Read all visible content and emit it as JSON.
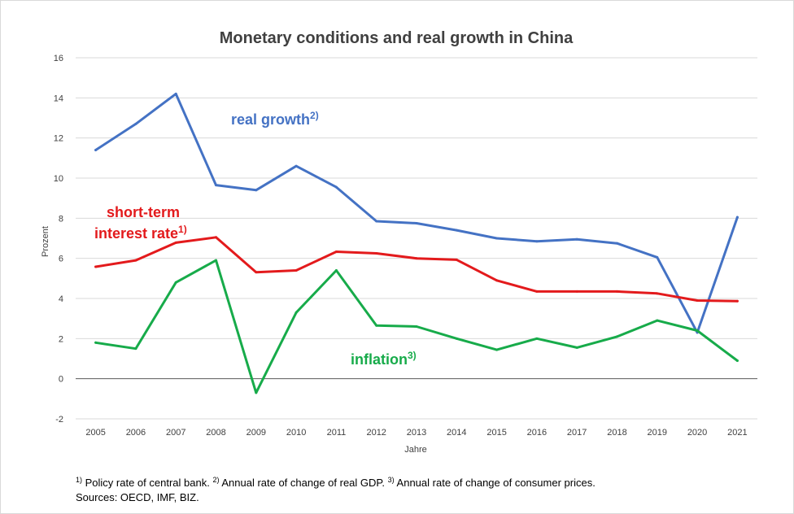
{
  "chart_data": {
    "type": "line",
    "title": "Monetary conditions and real growth in China",
    "xlabel": "Jahre",
    "ylabel": "Prozent",
    "ylim": [
      -2,
      16
    ],
    "yticks": [
      -2,
      0,
      2,
      4,
      6,
      8,
      10,
      12,
      14,
      16
    ],
    "grid": true,
    "legend": "none (inline labels)",
    "categories": [
      "2005",
      "2006",
      "2007",
      "2008",
      "2009",
      "2010",
      "2011",
      "2012",
      "2013",
      "2014",
      "2015",
      "2016",
      "2017",
      "2018",
      "2019",
      "2020",
      "2021"
    ],
    "series": [
      {
        "key": "growth",
        "label": "real growth",
        "label_sup": "2)",
        "color": "#4472c4",
        "values": [
          11.4,
          12.7,
          14.2,
          9.65,
          9.4,
          10.6,
          9.55,
          7.85,
          7.75,
          7.4,
          7.0,
          6.85,
          6.95,
          6.75,
          6.05,
          2.3,
          8.05
        ]
      },
      {
        "key": "rate",
        "label_line1": "short-term",
        "label_line2": "interest rate",
        "label_sup": "1)",
        "color": "#e31a1c",
        "values": [
          5.58,
          5.9,
          6.78,
          7.05,
          5.31,
          5.4,
          6.33,
          6.25,
          6.0,
          5.93,
          4.9,
          4.35,
          4.35,
          4.35,
          4.25,
          3.9,
          3.87
        ]
      },
      {
        "key": "inflation",
        "label": "inflation",
        "label_sup": "3)",
        "color": "#17ab4a",
        "values": [
          1.8,
          1.5,
          4.8,
          5.9,
          -0.7,
          3.3,
          5.4,
          2.65,
          2.6,
          2.0,
          1.44,
          2.0,
          1.55,
          2.1,
          2.9,
          2.4,
          0.9
        ]
      }
    ]
  },
  "footnotes": {
    "sup1": "1)",
    "text1": " Policy rate of central bank. ",
    "sup2": "2)",
    "text2": " Annual rate of change of real GDP. ",
    "sup3": "3)",
    "text3": " Annual rate of change of consumer prices.",
    "sources": "Sources: OECD, IMF, BIZ."
  }
}
